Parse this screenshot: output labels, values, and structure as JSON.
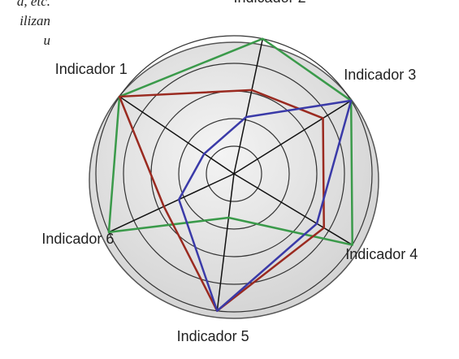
{
  "page_text": [
    "a,  etc.",
    "ilizan",
    "u"
  ],
  "chart_data": {
    "type": "radar",
    "categories": [
      "Indicador 1",
      "Indicador 2",
      "Indicador 3",
      "Indicador 4",
      "Indicador 5",
      "Indicador 6"
    ],
    "rlim": [
      0,
      5
    ],
    "rticks": [
      1,
      2,
      3,
      4,
      5
    ],
    "grid": true,
    "series": [
      {
        "color": "#3a9a4a",
        "values": [
          5,
          5,
          5,
          5,
          1.6,
          5
        ]
      },
      {
        "color": "#9a2a20",
        "values": [
          5,
          3.1,
          3.8,
          3.8,
          5,
          2.8
        ]
      },
      {
        "color": "#3a3aa8",
        "values": [
          1.3,
          2.1,
          5,
          3.5,
          5,
          2.2
        ]
      }
    ]
  }
}
